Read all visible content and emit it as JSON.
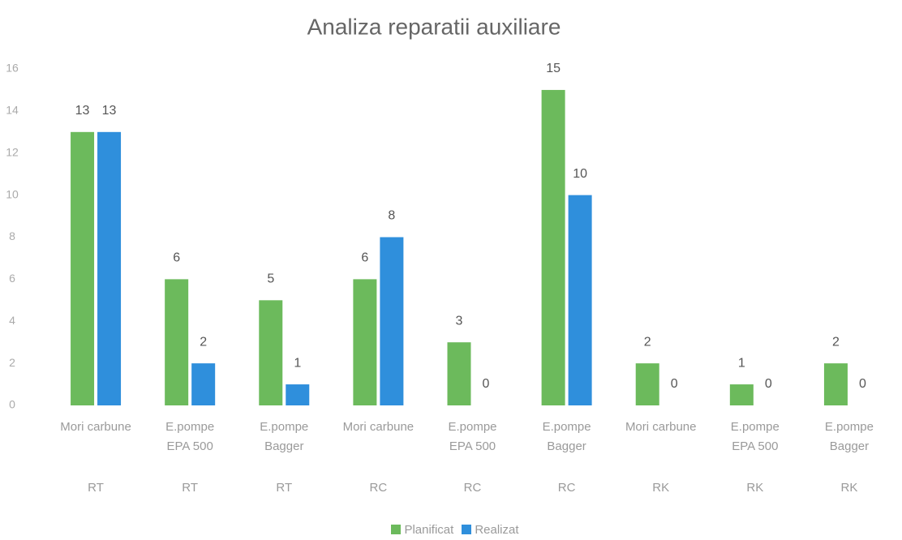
{
  "chart_data": {
    "type": "bar",
    "title": "Analiza reparatii auxiliare",
    "categories": [
      "Mori carbune",
      "E.pompe EPA 500",
      "E.pompe Bagger",
      "Mori carbune",
      "E.pompe EPA 500",
      "E.pompe Bagger",
      "Mori carbune",
      "E.pompe EPA 500",
      "E.pompe Bagger"
    ],
    "groups": [
      "RT",
      "RT",
      "RT",
      "RC",
      "RC",
      "RC",
      "RK",
      "RK",
      "RK"
    ],
    "series": [
      {
        "name": "Planificat",
        "color": "#6cba5c",
        "values": [
          13,
          6,
          5,
          6,
          3,
          15,
          2,
          1,
          2
        ]
      },
      {
        "name": "Realizat",
        "color": "#2f8fdc",
        "values": [
          13,
          2,
          1,
          8,
          0,
          10,
          0,
          0,
          0
        ]
      }
    ],
    "ylim": [
      0,
      16
    ],
    "yticks": [
      0,
      2,
      4,
      6,
      8,
      10,
      12,
      14,
      16
    ],
    "grid": false,
    "legend": "bottom"
  }
}
